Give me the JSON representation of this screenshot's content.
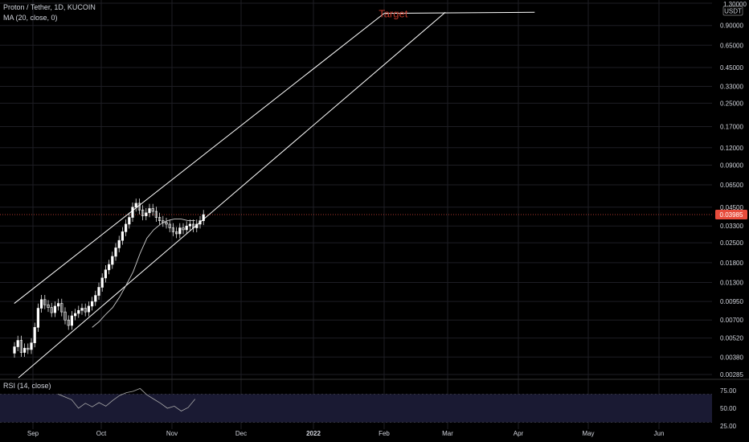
{
  "legend": {
    "symbol": "Proton / Tether, 1D, KUCOIN",
    "ma": "MA (20, close, 0)",
    "rsi": "RSI (14, close)"
  },
  "price_axis": {
    "currency": "USDT",
    "current_price": "0.03985"
  },
  "colors": {
    "background": "#000000",
    "grid": "#1e1e24",
    "candle": "#ffffff",
    "channel": "#ffffff",
    "target": "#c0392b",
    "price_line": "#e74c3c",
    "rsi_band": "#1a1a33",
    "rsi_line": "#aaaaaa"
  },
  "chart_data": [
    {
      "type": "line",
      "scale": "log",
      "title": "Proton / Tether, 1D, KUCOIN",
      "ylim": [
        0.00285,
        1.3
      ],
      "y_ticks": [
        "1.30000",
        "0.90000",
        "0.65000",
        "0.45000",
        "0.33000",
        "0.25000",
        "0.17000",
        "0.12000",
        "0.09000",
        "0.06500",
        "0.04500",
        "0.03300",
        "0.02500",
        "0.01800",
        "0.01300",
        "0.00950",
        "0.00700",
        "0.00520",
        "0.00380",
        "0.00285"
      ],
      "x_ticks": [
        "Sep",
        "Oct",
        "Nov",
        "Dec",
        "2022",
        "Feb",
        "Mar",
        "Apr",
        "May",
        "Jun"
      ],
      "series": [
        {
          "name": "MA (20, close, 0)",
          "x": [
            "2021-09-27",
            "2021-09-30",
            "2021-10-03",
            "2021-10-06",
            "2021-10-09",
            "2021-10-12",
            "2021-10-15",
            "2021-10-18",
            "2021-10-21",
            "2021-10-24",
            "2021-10-27",
            "2021-10-30",
            "2021-11-02",
            "2021-11-05",
            "2021-11-08",
            "2021-11-11"
          ],
          "values": [
            0.0062,
            0.0068,
            0.0077,
            0.0086,
            0.0102,
            0.0125,
            0.0155,
            0.021,
            0.027,
            0.031,
            0.034,
            0.036,
            0.037,
            0.037,
            0.036,
            0.036
          ]
        }
      ],
      "annotations": [
        {
          "text": "Target",
          "date": "2022-02-05",
          "value": 1.1
        }
      ],
      "trendlines": [
        {
          "from": [
            "2021-08-23",
            0.0092
          ],
          "to": [
            "2022-02-01",
            1.1
          ]
        },
        {
          "from": [
            "2021-08-25",
            0.0027
          ],
          "to": [
            "2022-02-28",
            1.12
          ]
        },
        {
          "from": [
            "2022-02-01",
            1.1
          ],
          "to": [
            "2022-04-08",
            1.12
          ]
        }
      ]
    },
    {
      "type": "line",
      "title": "RSI (14, close)",
      "ylim": [
        25,
        75
      ],
      "y_ticks": [
        "75.00",
        "50.00",
        "25.00"
      ],
      "series": [
        {
          "name": "RSI (14, close)",
          "x": [
            "2021-09-12",
            "2021-09-15",
            "2021-09-18",
            "2021-09-21",
            "2021-09-24",
            "2021-09-27",
            "2021-09-30",
            "2021-10-03",
            "2021-10-06",
            "2021-10-09",
            "2021-10-12",
            "2021-10-15",
            "2021-10-18",
            "2021-10-21",
            "2021-10-24",
            "2021-10-27",
            "2021-10-30",
            "2021-11-02",
            "2021-11-05",
            "2021-11-08",
            "2021-11-11"
          ],
          "values": [
            70,
            66,
            62,
            50,
            57,
            52,
            58,
            53,
            61,
            68,
            72,
            74,
            78,
            69,
            63,
            57,
            50,
            53,
            46,
            51,
            63
          ]
        }
      ]
    }
  ]
}
